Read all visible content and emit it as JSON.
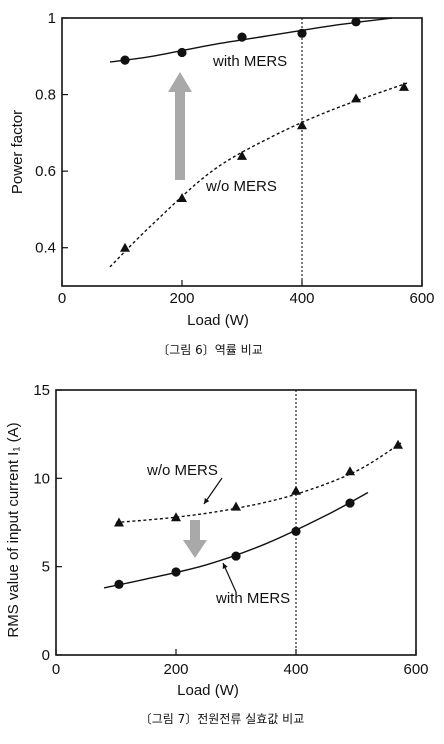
{
  "chart_data": [
    {
      "type": "scatter",
      "xlabel": "Load (W)",
      "ylabel": "Power factor",
      "xlim": [
        0,
        600
      ],
      "ylim": [
        0.3,
        1.0
      ],
      "xticks": [
        "0",
        "200",
        "400",
        "600"
      ],
      "yticks": [
        "0.4",
        "0.6",
        "0.8",
        "1"
      ],
      "reference_line_x": 400,
      "arrow_direction": "up",
      "caption": "〔그림 6〕역률 비교",
      "series": [
        {
          "name": "with MERS",
          "marker": "circle",
          "fit": "solid",
          "x": [
            105,
            200,
            300,
            400,
            490
          ],
          "y": [
            0.89,
            0.91,
            0.95,
            0.96,
            0.99
          ],
          "fit_x": [
            80,
            150,
            250,
            350,
            450,
            550
          ],
          "fit_y": [
            0.885,
            0.9,
            0.93,
            0.955,
            0.98,
            1.0
          ]
        },
        {
          "name": "w/o MERS",
          "marker": "triangle",
          "fit": "dashed",
          "x": [
            105,
            200,
            300,
            400,
            490,
            570
          ],
          "y": [
            0.4,
            0.53,
            0.64,
            0.72,
            0.79,
            0.82
          ],
          "fit_x": [
            80,
            150,
            250,
            350,
            450,
            575
          ],
          "fit_y": [
            0.35,
            0.46,
            0.6,
            0.69,
            0.76,
            0.83
          ]
        }
      ]
    },
    {
      "type": "scatter",
      "xlabel": "Load (W)",
      "ylabel": "RMS value of input current  I₁ (A)",
      "xlim": [
        0,
        600
      ],
      "ylim": [
        0,
        15
      ],
      "xticks": [
        "0",
        "200",
        "400",
        "600"
      ],
      "yticks": [
        "0",
        "5",
        "10",
        "15"
      ],
      "reference_line_x": 400,
      "arrow_direction": "down",
      "caption": "〔그림 7〕전원전류 실효값 비교",
      "series": [
        {
          "name": "w/o MERS",
          "marker": "triangle",
          "fit": "dashed",
          "x": [
            105,
            200,
            300,
            400,
            490,
            570
          ],
          "y": [
            7.5,
            7.8,
            8.4,
            9.3,
            10.4,
            11.9
          ],
          "fit_x": [
            100,
            200,
            300,
            400,
            500,
            575
          ],
          "fit_y": [
            7.5,
            7.8,
            8.3,
            9.1,
            10.4,
            12.0
          ]
        },
        {
          "name": "with MERS",
          "marker": "circle",
          "fit": "solid",
          "x": [
            105,
            200,
            300,
            400,
            490
          ],
          "y": [
            4.0,
            4.7,
            5.6,
            7.0,
            8.6
          ],
          "fit_x": [
            80,
            150,
            250,
            350,
            450,
            520
          ],
          "fit_y": [
            3.8,
            4.3,
            5.1,
            6.3,
            7.9,
            9.2
          ]
        }
      ]
    }
  ]
}
